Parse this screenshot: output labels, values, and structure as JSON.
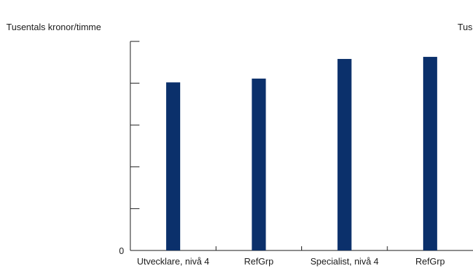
{
  "chart_data": {
    "type": "bar",
    "title": "",
    "ylabel_left": "Tusentals kronor/timme",
    "ylabel_right": "Tus",
    "categories": [
      "Utvecklare, nivå 4",
      "RefGrp",
      "Specialist, nivå 4",
      "RefGrp"
    ],
    "values": [
      0.402,
      0.411,
      0.458,
      0.463
    ],
    "ylim": [
      0,
      0.5
    ],
    "yticks": [
      0,
      0.1,
      0.2,
      0.3,
      0.4,
      0.5
    ],
    "ytick_labels": [
      "0",
      "",
      "",
      "",
      "",
      ""
    ],
    "grid": false,
    "colors": {
      "bar": "#0b306b",
      "axis": "#1a1a1a"
    }
  }
}
